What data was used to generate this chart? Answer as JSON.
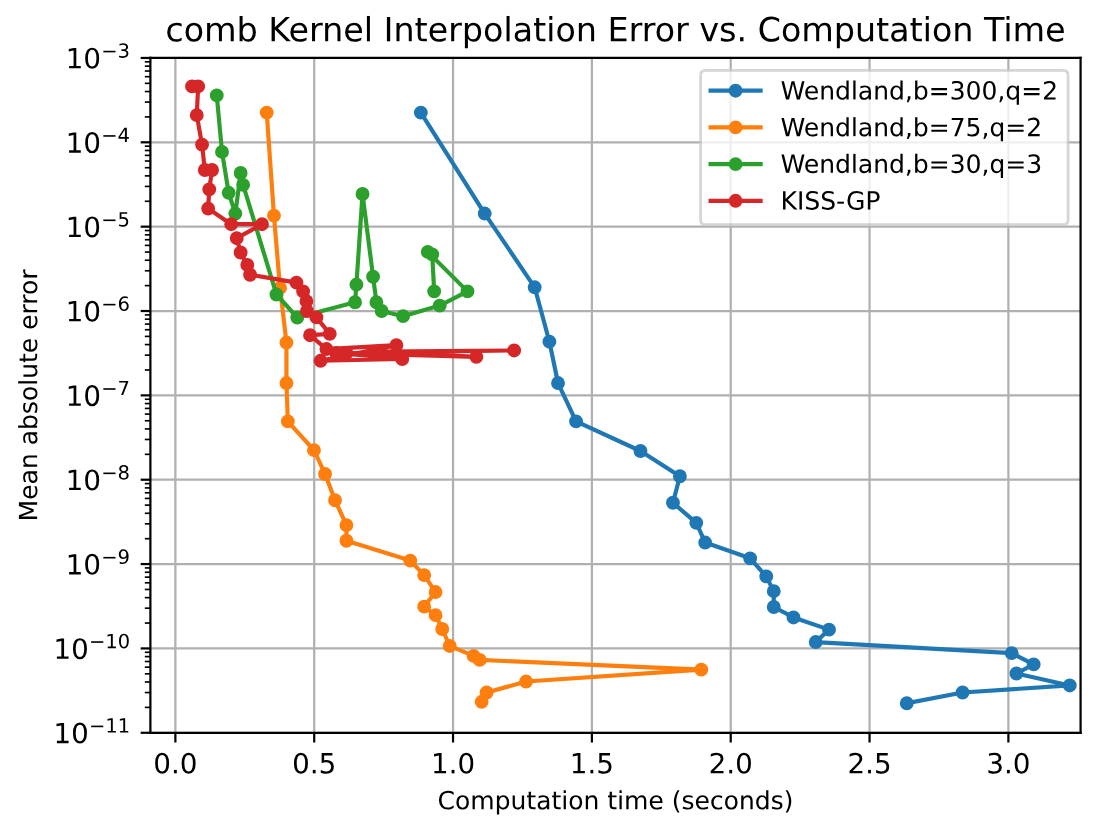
{
  "chart_data": {
    "type": "line",
    "title": "comb Kernel Interpolation Error vs. Computation Time",
    "xlabel": "Computation time (seconds)",
    "ylabel": "Mean absolute error",
    "log": "y",
    "grid": true,
    "legend": "top right",
    "marker": "circle",
    "line_style": "solid",
    "xlim": [
      -0.09,
      3.26
    ],
    "xticks": [
      {
        "value": 0,
        "label": "0.0"
      },
      {
        "value": 0.5,
        "label": "0.5"
      },
      {
        "value": 1,
        "label": "1.0"
      },
      {
        "value": 1.5,
        "label": "1.5"
      },
      {
        "value": 2,
        "label": "2.0"
      },
      {
        "value": 2.5,
        "label": "2.5"
      },
      {
        "value": 3,
        "label": "3.0"
      }
    ],
    "ylim": [
      1e-11,
      0.001
    ],
    "yticks": [
      {
        "value": 1e-11,
        "label": "10$^{−11}$"
      },
      {
        "value": 1e-10,
        "label": "10$^{−10}$"
      },
      {
        "value": 1e-09,
        "label": "10$^{−9}$"
      },
      {
        "value": 1e-08,
        "label": "10$^{−8}$"
      },
      {
        "value": 1e-07,
        "label": "10$^{−7}$"
      },
      {
        "value": 1e-06,
        "label": "10$^{−6}$"
      },
      {
        "value": 1e-05,
        "label": "10$^{−5}$"
      },
      {
        "value": 0.0001,
        "label": "10$^{−4}$"
      },
      {
        "value": 0.001,
        "label": "10$^{−3}$"
      }
    ],
    "series": [
      {
        "name": "Wendland,b=300,q=2",
        "color": "#1f77b4",
        "x": [
          0.884,
          1.114,
          1.294,
          1.347,
          1.378,
          1.443,
          1.675,
          1.817,
          1.792,
          1.876,
          1.908,
          2.07,
          2.128,
          2.155,
          2.155,
          2.226,
          2.354,
          2.306,
          3.012,
          3.091,
          3.029,
          3.221,
          2.835,
          2.634
        ],
        "values": [
          0.000225,
          1.43e-05,
          1.91e-06,
          4.33e-07,
          1.4e-07,
          4.92e-08,
          2.19e-08,
          1.1e-08,
          5.33e-09,
          3.08e-09,
          1.8e-09,
          1.17e-09,
          7.14e-10,
          4.77e-10,
          3.1e-10,
          2.33e-10,
          1.67e-10,
          1.19e-10,
          8.8e-11,
          6.47e-11,
          5.04e-11,
          3.64e-11,
          3e-11,
          2.24e-11
        ]
      },
      {
        "name": "Wendland,b=75,q=2",
        "color": "#ff7f0e",
        "x": [
          0.329,
          0.355,
          0.377,
          0.4,
          0.4,
          0.405,
          0.499,
          0.539,
          0.575,
          0.616,
          0.616,
          0.846,
          0.896,
          0.937,
          0.896,
          0.937,
          0.961,
          0.988,
          1.074,
          1.096,
          1.894,
          1.263,
          1.121,
          1.103
        ],
        "values": [
          0.000225,
          1.35e-05,
          1.88e-06,
          4.23e-07,
          1.4e-07,
          4.92e-08,
          2.24e-08,
          1.17e-08,
          5.71e-09,
          2.9e-09,
          1.89e-09,
          1.1e-09,
          7.4e-10,
          4.66e-10,
          3.13e-10,
          2.48e-10,
          1.7e-10,
          1.07e-10,
          8.15e-11,
          7.31e-11,
          5.6e-11,
          4.05e-11,
          3e-11,
          2.33e-11
        ]
      },
      {
        "name": "Wendland,b=30,q=3",
        "color": "#2ca02c",
        "x": [
          0.149,
          0.168,
          0.192,
          0.216,
          0.235,
          0.244,
          0.364,
          0.439,
          0.647,
          0.652,
          0.674,
          0.712,
          0.724,
          0.743,
          0.82,
          0.952,
          1.052,
          0.909,
          0.925,
          0.932
        ],
        "values": [
          0.00036,
          7.7e-05,
          2.52e-05,
          1.43e-05,
          4.33e-05,
          3.13e-05,
          1.57e-06,
          8.38e-07,
          1.27e-06,
          2.06e-06,
          2.44e-05,
          2.55e-06,
          1.27e-06,
          1e-06,
          8.69e-07,
          1.16e-06,
          1.71e-06,
          5.02e-06,
          4.69e-06,
          1.71e-06
        ]
      },
      {
        "name": "KISS-GP",
        "color": "#d62728",
        "x": [
          0.06,
          0.082,
          0.077,
          0.096,
          0.106,
          0.132,
          0.122,
          0.118,
          0.201,
          0.312,
          0.221,
          0.235,
          0.259,
          0.269,
          0.436,
          0.46,
          0.472,
          0.474,
          0.508,
          0.556,
          0.485,
          0.544,
          0.796,
          0.523,
          0.817,
          0.58,
          1.084,
          0.724,
          1.22,
          0.616
        ],
        "values": [
          0.00046,
          0.00046,
          0.00021,
          9.4e-05,
          4.7e-05,
          4.7e-05,
          2.77e-05,
          1.64e-05,
          1.07e-05,
          1.07e-05,
          7.3e-06,
          4.94e-06,
          3.52e-06,
          2.69e-06,
          2.17e-06,
          1.71e-06,
          1.31e-06,
          1e-06,
          8.4e-07,
          5.36e-07,
          5.17e-07,
          3.54e-07,
          3.94e-07,
          2.57e-07,
          2.7e-07,
          3.18e-07,
          2.86e-07,
          3.3e-07,
          3.41e-07,
          3.18e-07
        ]
      }
    ]
  }
}
